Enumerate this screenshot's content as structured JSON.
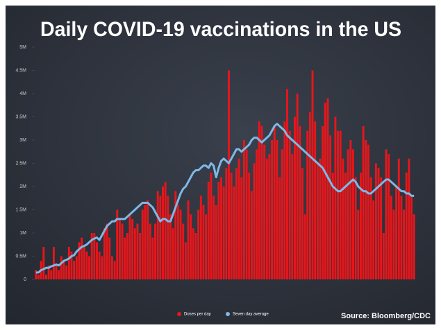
{
  "chart_data": {
    "type": "bar",
    "title": "Daily COVID-19 vaccinations in the US",
    "source": "Source: Bloomberg/CDC",
    "ylim": [
      0,
      5
    ],
    "yticks": [
      0,
      {
        "value": 0.5,
        "label": "0.5M"
      },
      {
        "value": 1,
        "label": "1M"
      },
      {
        "value": 1.5,
        "label": "1.5M"
      },
      {
        "value": 2,
        "label": "2M"
      },
      {
        "value": 2.5,
        "label": "2.5M"
      },
      {
        "value": 3,
        "label": "3M"
      },
      {
        "value": 3.5,
        "label": "3.5M"
      },
      {
        "value": 4,
        "label": "4M"
      },
      {
        "value": 4.5,
        "label": "4.5M"
      },
      {
        "value": 5,
        "label": "5M"
      }
    ],
    "categories": [
      null,
      null,
      null,
      null,
      null,
      null,
      null,
      null,
      null,
      null,
      null,
      null,
      null,
      null,
      null,
      null,
      null,
      null,
      null,
      null,
      null,
      null,
      null,
      null,
      null,
      null,
      null,
      null,
      null,
      null,
      null,
      null,
      null,
      null,
      null,
      null,
      null,
      null,
      null,
      null,
      null,
      null,
      null,
      null,
      null,
      null,
      null,
      null,
      null,
      null,
      null,
      null,
      null,
      null,
      null,
      null,
      null,
      null,
      null,
      null,
      null,
      null,
      null,
      null,
      null,
      null,
      null,
      null,
      null,
      null,
      null,
      null,
      null,
      null,
      null,
      null,
      null,
      null,
      null,
      null,
      null,
      null,
      null,
      null,
      null,
      null,
      null,
      null,
      null,
      null,
      null,
      null,
      null,
      null,
      null,
      null,
      null,
      null,
      null,
      null,
      null,
      null,
      null,
      null,
      null,
      null,
      null,
      null,
      null,
      null,
      null,
      null,
      null,
      null,
      null,
      null,
      null,
      null,
      null,
      null,
      null,
      null,
      null,
      null,
      null,
      null,
      null,
      null,
      null,
      null,
      null,
      null,
      null,
      null,
      null,
      null,
      null,
      null,
      null,
      null,
      null,
      null,
      null,
      null,
      null,
      null,
      null,
      null,
      null,
      null
    ],
    "series": [
      {
        "name": "Doses per day",
        "type": "bar",
        "color": "#e8161b",
        "values": [
          0.2,
          0.1,
          0.4,
          0.7,
          0.1,
          0.3,
          0.2,
          0.7,
          0.3,
          0.2,
          0.5,
          0.4,
          0.3,
          0.7,
          0.6,
          0.4,
          0.5,
          0.8,
          0.9,
          0.7,
          0.6,
          0.5,
          1.0,
          1.0,
          0.8,
          0.6,
          0.5,
          1.1,
          1.2,
          0.9,
          0.5,
          0.4,
          1.5,
          1.3,
          1.2,
          0.9,
          1.0,
          1.4,
          1.3,
          1.1,
          1.2,
          1.0,
          1.5,
          1.6,
          1.7,
          1.2,
          0.9,
          1.2,
          1.9,
          1.8,
          2.0,
          2.1,
          1.8,
          1.4,
          1.1,
          1.9,
          1.6,
          1.5,
          1.2,
          0.8,
          1.7,
          1.4,
          1.1,
          1.0,
          1.5,
          1.8,
          1.6,
          1.4,
          2.1,
          2.3,
          1.8,
          1.6,
          2.1,
          2.2,
          2.0,
          2.4,
          4.5,
          2.3,
          2.0,
          2.4,
          2.6,
          2.2,
          3.0,
          2.8,
          2.3,
          1.9,
          2.5,
          2.8,
          3.4,
          3.3,
          2.9,
          2.6,
          2.7,
          3.0,
          3.3,
          3.0,
          2.2,
          2.8,
          3.4,
          4.1,
          3.2,
          2.7,
          3.5,
          4.0,
          3.3,
          2.4,
          1.4,
          3.2,
          3.6,
          4.5,
          3.4,
          2.5,
          2.6,
          3.3,
          3.8,
          3.9,
          3.1,
          2.3,
          3.5,
          3.2,
          3.2,
          2.6,
          2.3,
          2.8,
          3.0,
          2.8,
          2.2,
          1.5,
          2.3,
          3.3,
          3.0,
          2.9,
          2.2,
          1.7,
          2.5,
          2.4,
          2.2,
          1.0,
          2.8,
          2.7,
          1.8,
          1.5,
          2.0,
          2.6,
          1.8,
          1.5,
          2.3,
          2.6,
          1.8,
          1.4
        ]
      },
      {
        "name": "Seven day average",
        "type": "line",
        "color": "#7fb8e6",
        "values": [
          0.15,
          0.15,
          0.2,
          0.22,
          0.25,
          0.25,
          0.28,
          0.3,
          0.32,
          0.3,
          0.35,
          0.4,
          0.42,
          0.45,
          0.5,
          0.52,
          0.6,
          0.65,
          0.7,
          0.72,
          0.75,
          0.8,
          0.85,
          0.88,
          0.9,
          0.85,
          0.95,
          1.05,
          1.15,
          1.2,
          1.25,
          1.25,
          1.3,
          1.3,
          1.3,
          1.3,
          1.35,
          1.4,
          1.45,
          1.5,
          1.55,
          1.6,
          1.65,
          1.65,
          1.65,
          1.6,
          1.55,
          1.45,
          1.35,
          1.25,
          1.3,
          1.3,
          1.25,
          1.25,
          1.4,
          1.55,
          1.7,
          1.85,
          1.95,
          2.0,
          2.1,
          2.2,
          2.3,
          2.35,
          2.35,
          2.4,
          2.45,
          2.45,
          2.4,
          2.5,
          2.45,
          2.2,
          2.4,
          2.55,
          2.6,
          2.55,
          2.5,
          2.6,
          2.7,
          2.8,
          2.8,
          2.75,
          2.8,
          2.85,
          2.9,
          3.0,
          3.05,
          3.05,
          3.0,
          2.95,
          3.0,
          3.05,
          3.1,
          3.2,
          3.3,
          3.35,
          3.3,
          3.25,
          3.2,
          3.1,
          3.05,
          3.0,
          2.95,
          2.9,
          2.85,
          2.8,
          2.75,
          2.7,
          2.65,
          2.6,
          2.55,
          2.5,
          2.45,
          2.4,
          2.3,
          2.2,
          2.1,
          2.0,
          1.95,
          1.9,
          1.9,
          1.95,
          2.0,
          2.05,
          2.1,
          2.15,
          2.1,
          2.0,
          1.95,
          1.9,
          1.9,
          1.85,
          1.85,
          1.9,
          1.95,
          2.0,
          2.05,
          2.1,
          2.15,
          2.15,
          2.1,
          2.05,
          2.0,
          1.95,
          1.9,
          1.9,
          1.85,
          1.85,
          1.8,
          1.8
        ]
      }
    ]
  }
}
